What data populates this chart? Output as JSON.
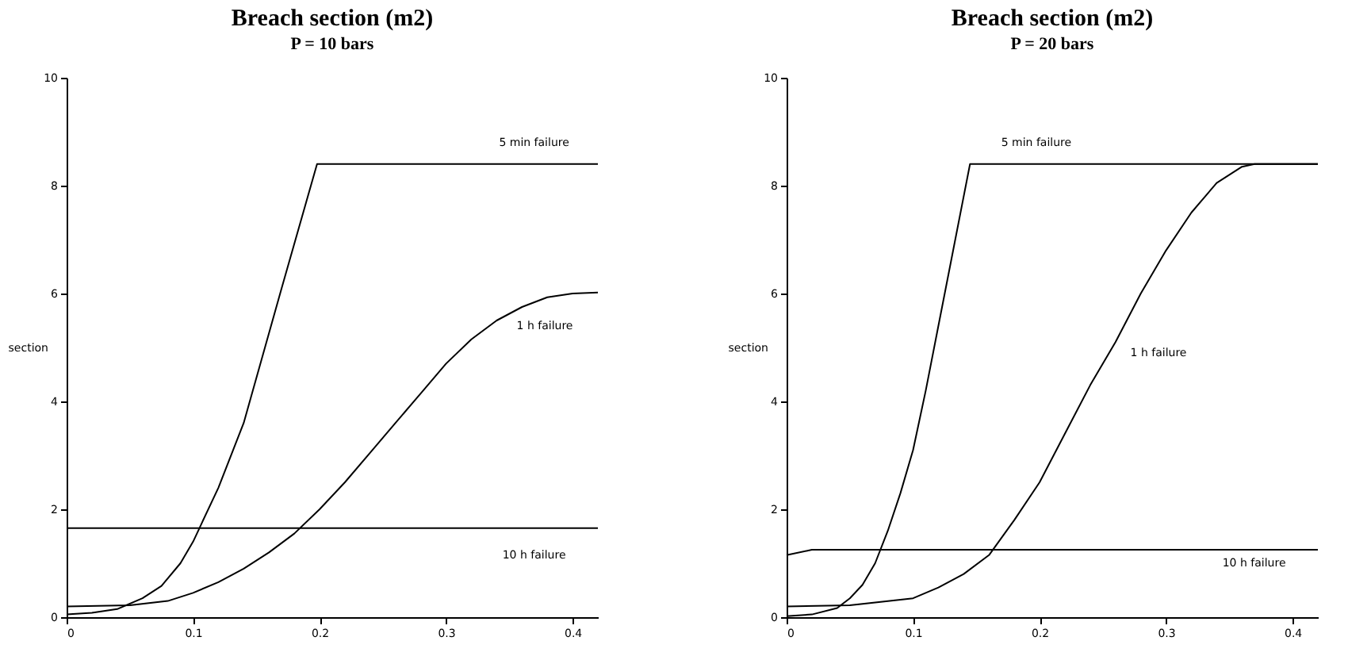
{
  "chart_data": [
    {
      "type": "line",
      "title": "Breach section (m2)",
      "subtitle": "P = 10 bars",
      "ylabel": "section",
      "xlim": [
        0,
        0.42
      ],
      "ylim": [
        0,
        10
      ],
      "xticks": [
        0,
        0.1,
        0.2,
        0.3,
        0.4
      ],
      "yticks": [
        0,
        2,
        4,
        6,
        8,
        10
      ],
      "grid": false,
      "legend": false,
      "marker": "none",
      "line_style": "solid",
      "series": [
        {
          "name": "5 min failure",
          "color": "#000000",
          "x": [
            0,
            0.02,
            0.04,
            0.06,
            0.075,
            0.09,
            0.1,
            0.105,
            0.12,
            0.14,
            0.152,
            0.17,
            0.198,
            0.42
          ],
          "values": [
            0.05,
            0.08,
            0.15,
            0.35,
            0.58,
            1.0,
            1.4,
            1.65,
            2.4,
            3.6,
            4.6,
            6.1,
            8.4,
            8.4
          ]
        },
        {
          "name": "1 h failure",
          "color": "#000000",
          "x": [
            0,
            0.05,
            0.08,
            0.1,
            0.12,
            0.14,
            0.16,
            0.18,
            0.2,
            0.22,
            0.24,
            0.26,
            0.28,
            0.3,
            0.32,
            0.34,
            0.36,
            0.38,
            0.4,
            0.42
          ],
          "values": [
            0.2,
            0.22,
            0.3,
            0.45,
            0.65,
            0.9,
            1.2,
            1.55,
            2.0,
            2.5,
            3.05,
            3.6,
            4.15,
            4.7,
            5.15,
            5.5,
            5.75,
            5.93,
            6.0,
            6.02
          ]
        },
        {
          "name": "10 h failure",
          "color": "#000000",
          "x": [
            0,
            0.42
          ],
          "values": [
            1.65,
            1.65
          ]
        }
      ]
    },
    {
      "type": "line",
      "title": "Breach section (m2)",
      "subtitle": "P = 20 bars",
      "ylabel": "section",
      "xlim": [
        0,
        0.42
      ],
      "ylim": [
        0,
        10
      ],
      "xticks": [
        0,
        0.1,
        0.2,
        0.3,
        0.4
      ],
      "yticks": [
        0,
        2,
        4,
        6,
        8,
        10
      ],
      "grid": false,
      "legend": false,
      "marker": "none",
      "line_style": "solid",
      "series": [
        {
          "name": "5 min failure",
          "color": "#000000",
          "x": [
            0,
            0.02,
            0.04,
            0.05,
            0.06,
            0.07,
            0.08,
            0.09,
            0.1,
            0.11,
            0.12,
            0.13,
            0.145,
            0.42
          ],
          "values": [
            0.02,
            0.05,
            0.17,
            0.35,
            0.6,
            1.0,
            1.6,
            2.3,
            3.1,
            4.2,
            5.4,
            6.6,
            8.4,
            8.4
          ]
        },
        {
          "name": "1 h failure",
          "color": "#000000",
          "x": [
            0,
            0.05,
            0.1,
            0.12,
            0.14,
            0.16,
            0.18,
            0.2,
            0.22,
            0.24,
            0.26,
            0.28,
            0.3,
            0.32,
            0.34,
            0.36,
            0.37,
            0.42
          ],
          "values": [
            0.2,
            0.22,
            0.35,
            0.55,
            0.8,
            1.15,
            1.8,
            2.5,
            3.4,
            4.3,
            5.1,
            6.0,
            6.8,
            7.5,
            8.05,
            8.35,
            8.4,
            8.4
          ]
        },
        {
          "name": "10 h failure",
          "color": "#000000",
          "x": [
            0,
            0.02,
            0.42
          ],
          "values": [
            1.15,
            1.25,
            1.25
          ]
        }
      ]
    }
  ]
}
